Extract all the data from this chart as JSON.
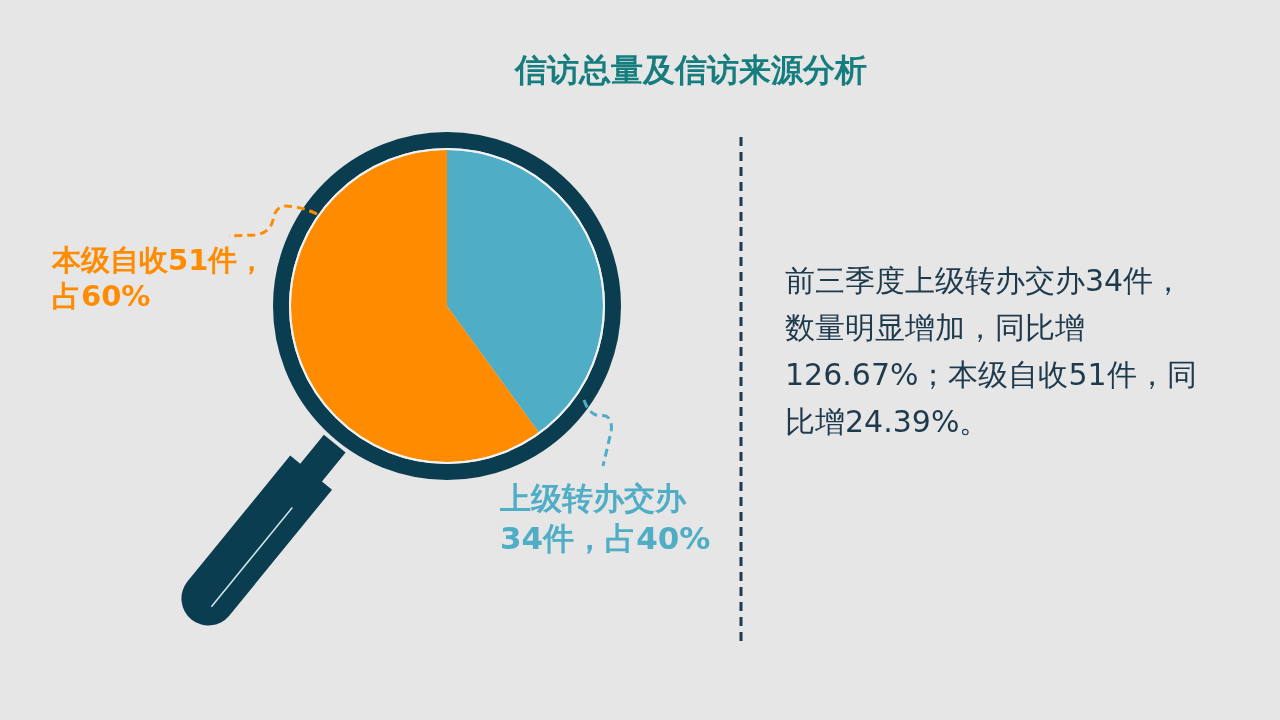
{
  "chart_data": {
    "type": "pie",
    "title": "信访总量及信访来源分析",
    "categories": [
      "上级转办交办34件，占40%",
      "本级自收51件，占60%"
    ],
    "values": [
      34,
      51
    ],
    "colors": [
      "#4fadc6",
      "#ff8c00"
    ],
    "annotations": [
      "前三季度上级转办交办34件，数量明显增加，同比增126.67%；本级自收51件，同比增24.39%。"
    ]
  }
}
